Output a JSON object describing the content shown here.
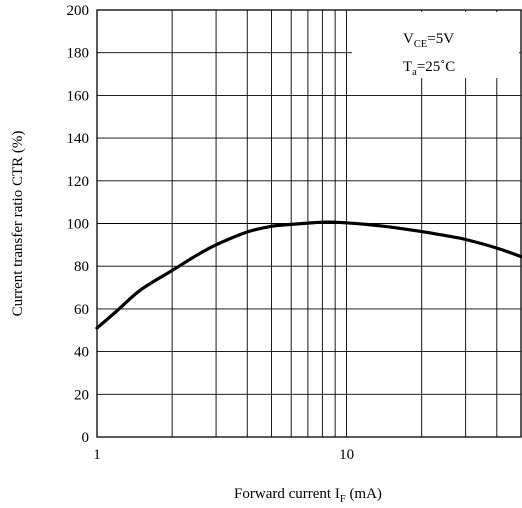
{
  "chart_data": {
    "type": "line",
    "title": "",
    "xlabel": {
      "main": "Forward current I",
      "sub": "F",
      "unit": " (mA)"
    },
    "ylabel": "Current transfer ratio CTR (%)",
    "x_scale": "log",
    "xlim": [
      1,
      50
    ],
    "ylim": [
      0,
      200
    ],
    "x_ticks": [
      {
        "value": 1,
        "label": "1"
      },
      {
        "value": 10,
        "label": "10"
      }
    ],
    "y_ticks": [
      {
        "value": 0,
        "label": "0"
      },
      {
        "value": 20,
        "label": "20"
      },
      {
        "value": 40,
        "label": "40"
      },
      {
        "value": 60,
        "label": "60"
      },
      {
        "value": 80,
        "label": "80"
      },
      {
        "value": 100,
        "label": "100"
      },
      {
        "value": 120,
        "label": "120"
      },
      {
        "value": 140,
        "label": "140"
      },
      {
        "value": 160,
        "label": "160"
      },
      {
        "value": 180,
        "label": "180"
      },
      {
        "value": 200,
        "label": "200"
      }
    ],
    "grid": true,
    "conditions": [
      {
        "main": "V",
        "sub": "CE",
        "rest": "=5V"
      },
      {
        "main": "T",
        "sub": "a",
        "rest": "=25˚C"
      }
    ],
    "series": [
      {
        "x": [
          1,
          1.2,
          1.5,
          2,
          2.5,
          3,
          4,
          5,
          6,
          7,
          8,
          9,
          10,
          12,
          15,
          20,
          25,
          30,
          40,
          50
        ],
        "y": [
          51,
          59,
          69,
          78,
          85,
          90,
          96,
          98.7,
          99.6,
          100.2,
          100.6,
          100.6,
          100.3,
          99.6,
          98.3,
          96.2,
          94.3,
          92.5,
          88.5,
          84.5
        ]
      }
    ]
  }
}
